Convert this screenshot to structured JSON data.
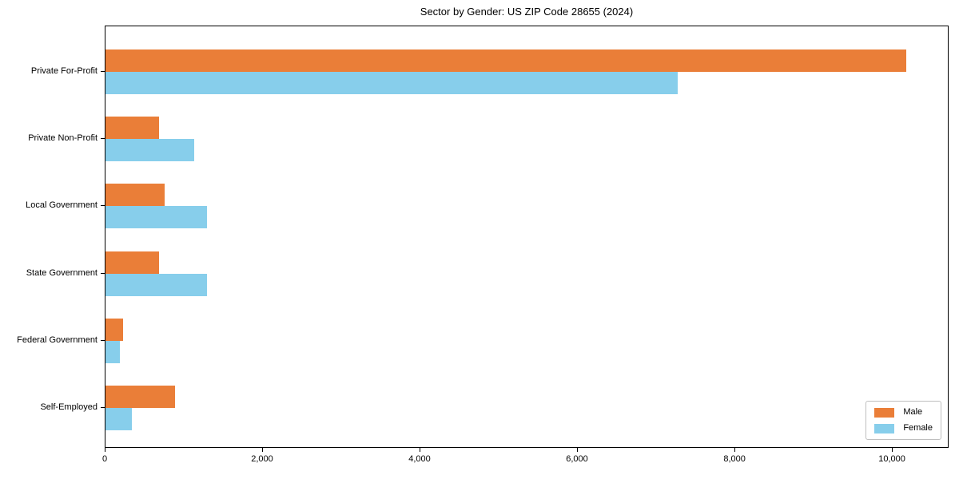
{
  "title": "Sector by Gender: US ZIP Code 28655 (2024)",
  "colors": {
    "male": "#ea7e38",
    "female": "#87ceeb",
    "axis": "#000000",
    "legend_border": "#bfbfbf",
    "background": "#ffffff"
  },
  "chart_data": {
    "type": "bar",
    "orientation": "horizontal",
    "title": "Sector by Gender: US ZIP Code 28655 (2024)",
    "categories": [
      "Private For-Profit",
      "Private Non-Profit",
      "Local Government",
      "State Government",
      "Federal Government",
      "Self-Employed"
    ],
    "series": [
      {
        "name": "Male",
        "color": "#ea7e38",
        "values": [
          10170,
          680,
          750,
          680,
          220,
          880
        ]
      },
      {
        "name": "Female",
        "color": "#87ceeb",
        "values": [
          7270,
          1130,
          1290,
          1290,
          180,
          330
        ]
      }
    ],
    "xlabel": "",
    "ylabel": "",
    "xlim": [
      0,
      10720
    ],
    "xticks": [
      0,
      2000,
      4000,
      6000,
      8000,
      10000
    ],
    "xtick_labels": [
      "0",
      "2,000",
      "4,000",
      "6,000",
      "8,000",
      "10,000"
    ],
    "grid": false,
    "legend_position": "lower right"
  }
}
